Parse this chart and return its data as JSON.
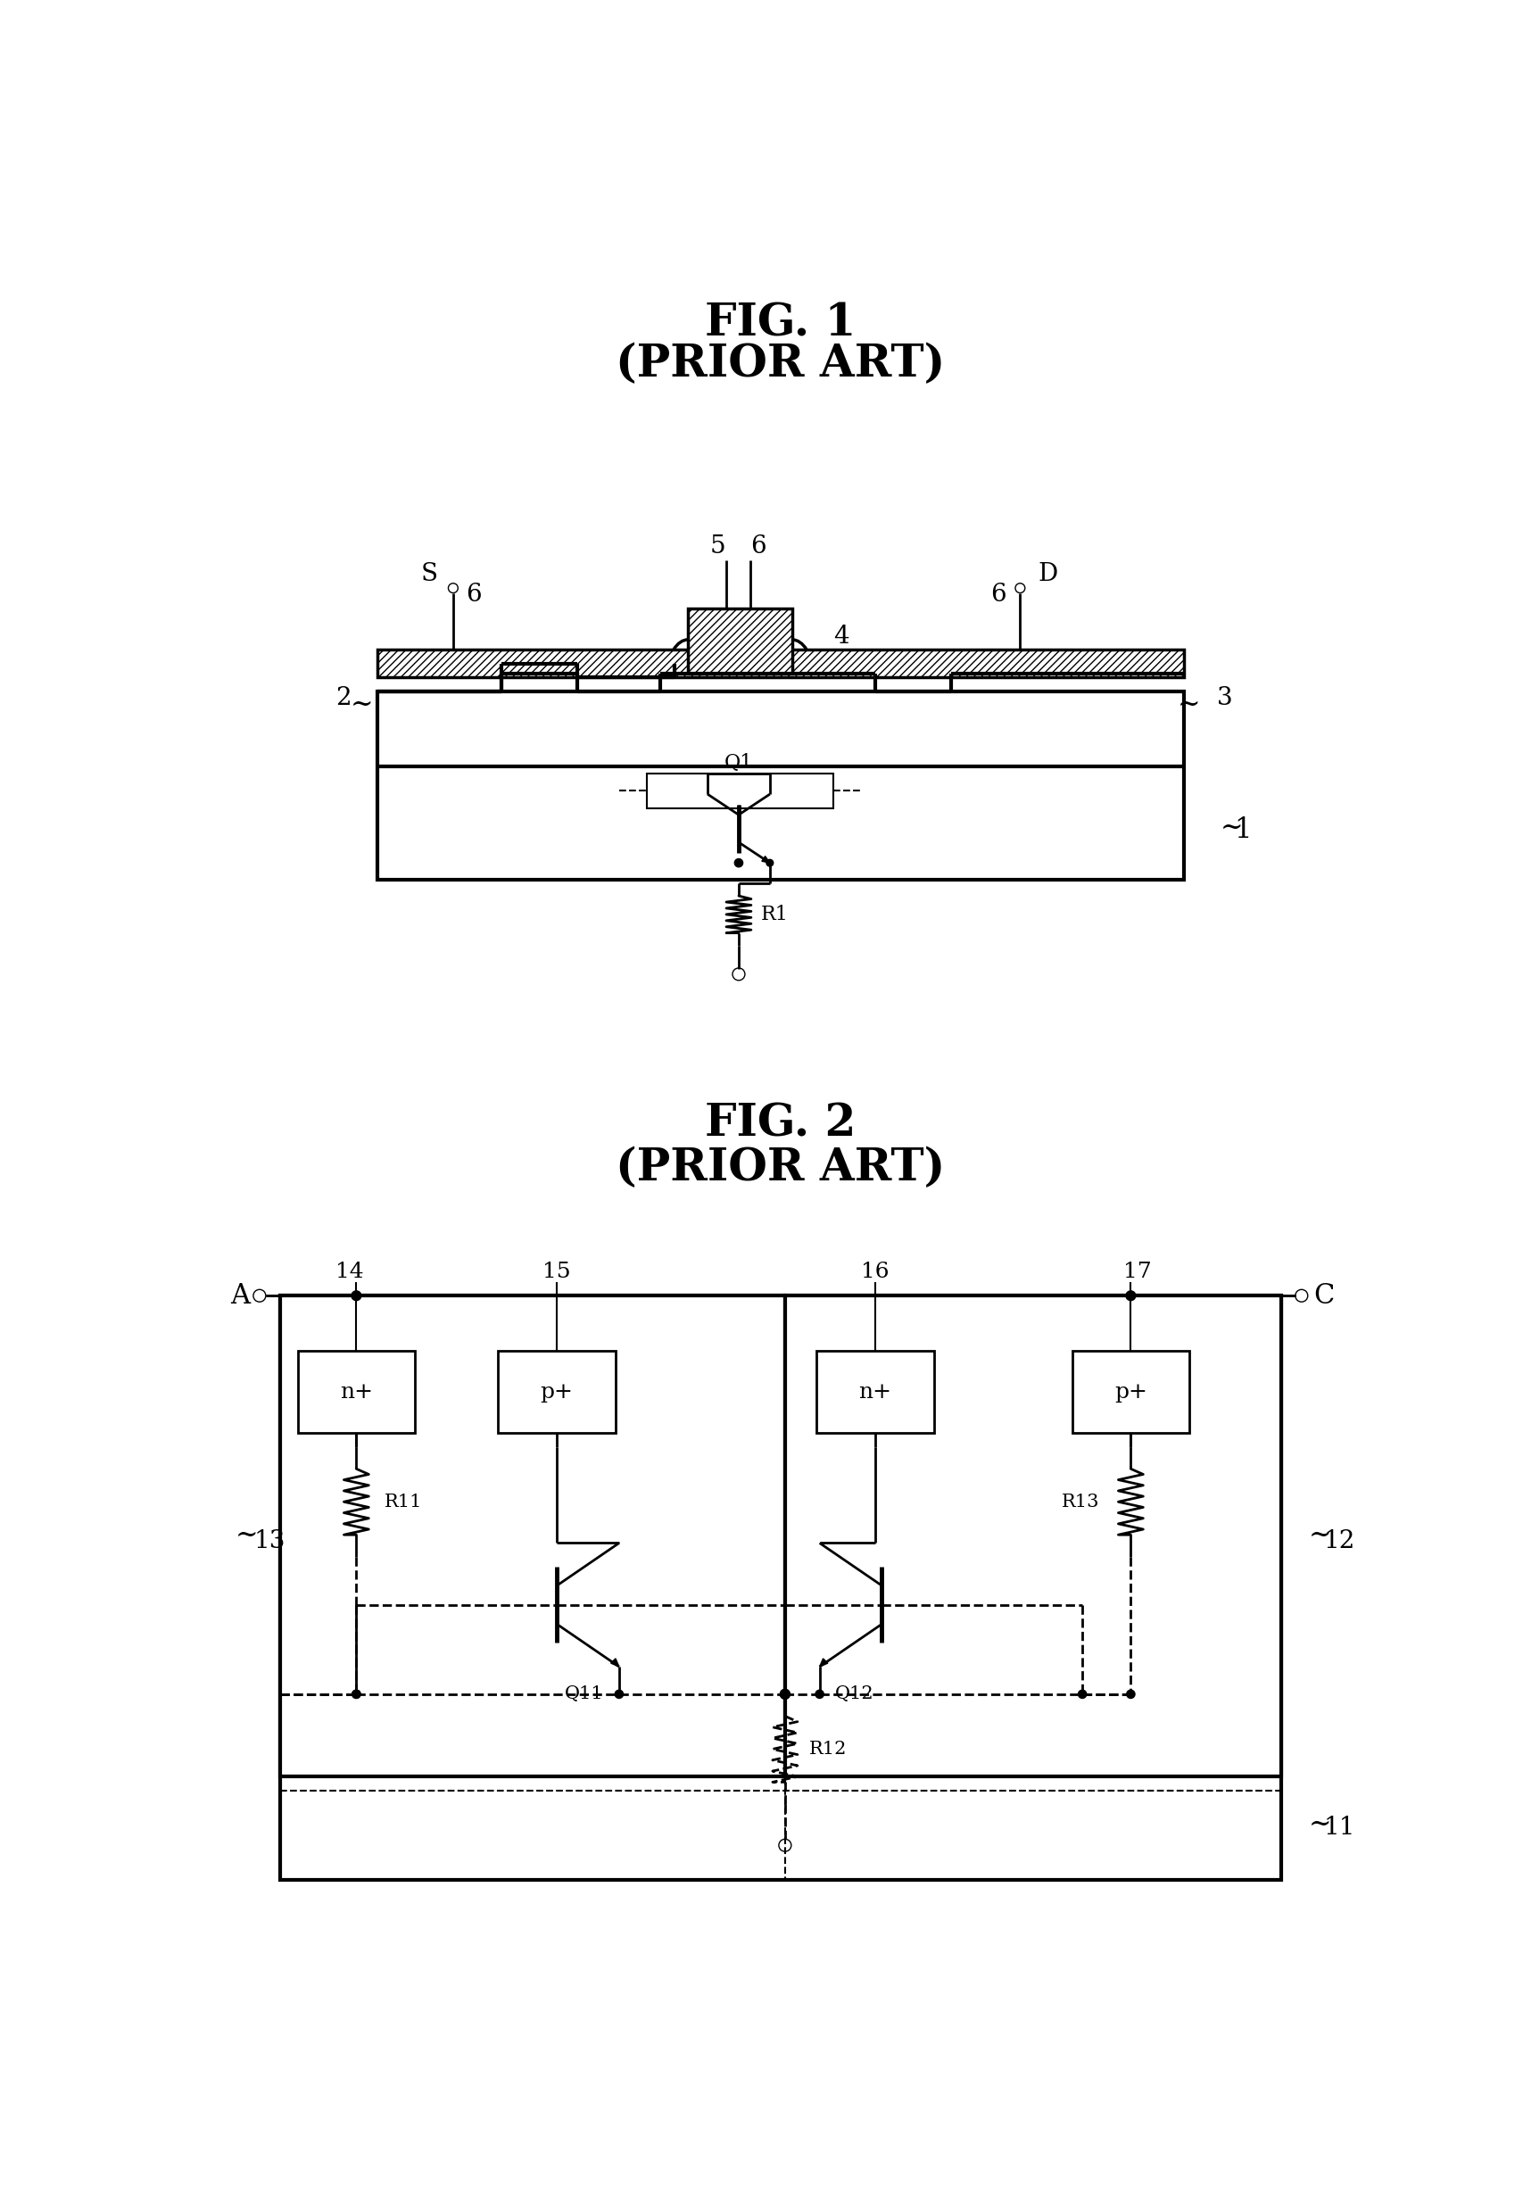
{
  "fig1_title": "FIG. 1",
  "fig1_subtitle": "(PRIOR ART)",
  "fig2_title": "FIG. 2",
  "fig2_subtitle": "(PRIOR ART)",
  "bg_color": "#ffffff",
  "line_color": "#000000"
}
